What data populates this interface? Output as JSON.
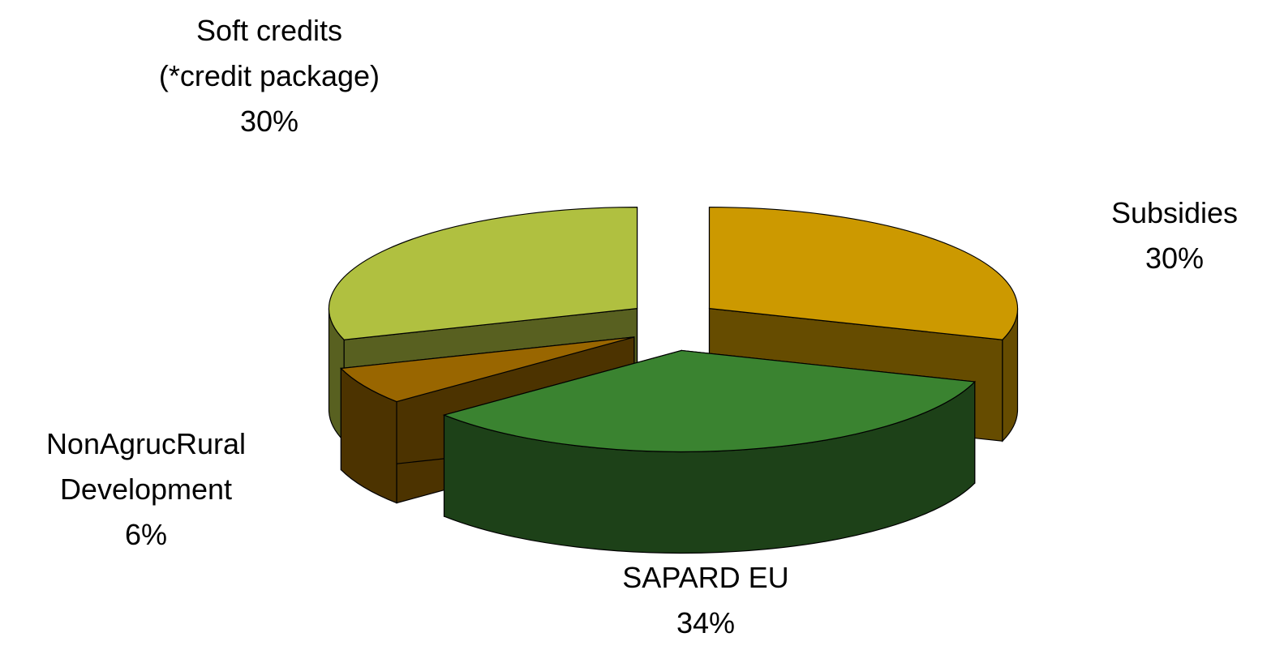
{
  "chart_data": {
    "type": "pie3d",
    "categories": [
      "Subsidies",
      "SAPARD EU",
      "NonAgrucRural Development",
      "Soft credits (*credit package)"
    ],
    "values": [
      30,
      34,
      6,
      30
    ],
    "value_labels": [
      "30%",
      "34%",
      "6%",
      "30%"
    ],
    "colors": [
      "#cc9900",
      "#3a8330",
      "#996600",
      "#b0c040"
    ],
    "exploded": true
  }
}
